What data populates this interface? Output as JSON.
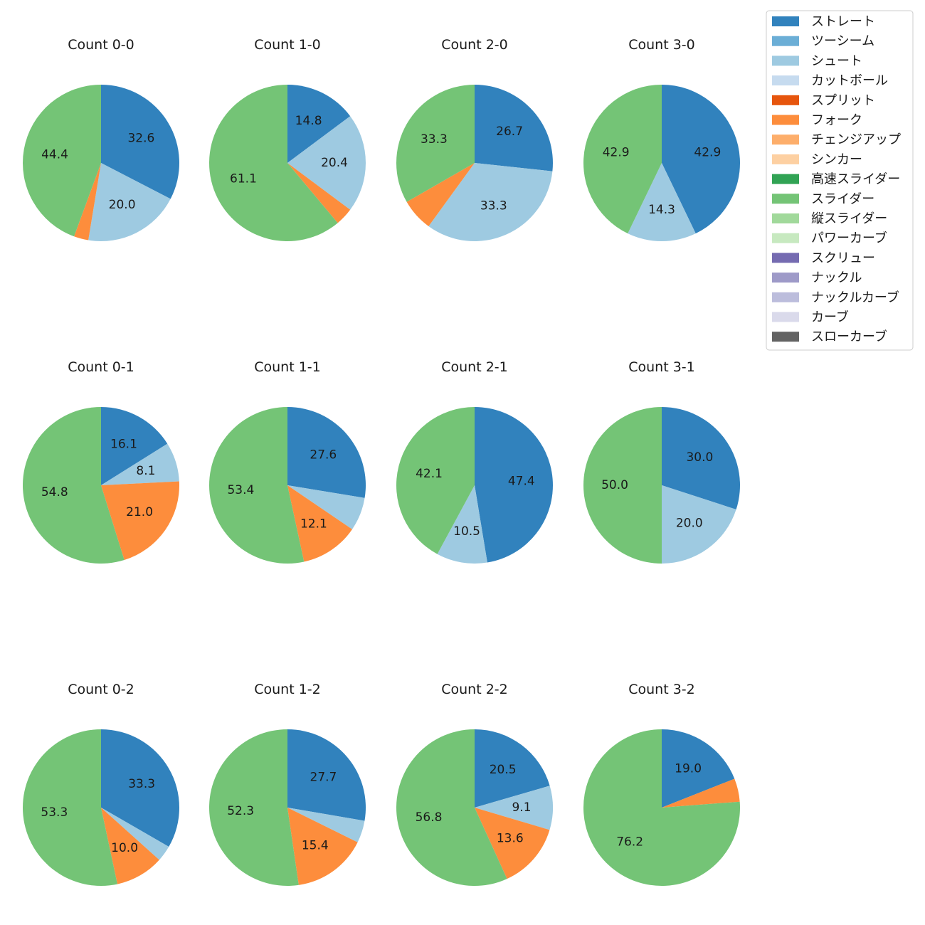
{
  "chart_data": {
    "type": "pie",
    "legend": {
      "placement": "top-right",
      "entries": [
        {
          "name": "ストレート",
          "color": "#3182bd"
        },
        {
          "name": "ツーシーム",
          "color": "#6baed6"
        },
        {
          "name": "シュート",
          "color": "#9ecae1"
        },
        {
          "name": "カットボール",
          "color": "#c6dbef"
        },
        {
          "name": "スプリット",
          "color": "#e6550d"
        },
        {
          "name": "フォーク",
          "color": "#fd8d3c"
        },
        {
          "name": "チェンジアップ",
          "color": "#fdae6b"
        },
        {
          "name": "シンカー",
          "color": "#fdd0a2"
        },
        {
          "name": "高速スライダー",
          "color": "#31a354"
        },
        {
          "name": "スライダー",
          "color": "#74c476"
        },
        {
          "name": "縦スライダー",
          "color": "#a1d99b"
        },
        {
          "name": "パワーカーブ",
          "color": "#c7e9c0"
        },
        {
          "name": "スクリュー",
          "color": "#756bb1"
        },
        {
          "name": "ナックル",
          "color": "#9e9ac8"
        },
        {
          "name": "ナックルカーブ",
          "color": "#bcbddc"
        },
        {
          "name": "カーブ",
          "color": "#dadaeb"
        },
        {
          "name": "スローカーブ",
          "color": "#636363"
        }
      ]
    },
    "pies": [
      {
        "title": "Count 0-0",
        "slices": [
          {
            "pitch": "ストレート",
            "value": 32.6,
            "label": "32.6"
          },
          {
            "pitch": "シュート",
            "value": 20.0,
            "label": "20.0"
          },
          {
            "pitch": "フォーク",
            "value": 3.0,
            "label": ""
          },
          {
            "pitch": "スライダー",
            "value": 44.4,
            "label": "44.4"
          }
        ]
      },
      {
        "title": "Count 1-0",
        "slices": [
          {
            "pitch": "ストレート",
            "value": 14.8,
            "label": "14.8"
          },
          {
            "pitch": "シュート",
            "value": 20.4,
            "label": "20.4"
          },
          {
            "pitch": "フォーク",
            "value": 3.7,
            "label": ""
          },
          {
            "pitch": "スライダー",
            "value": 61.1,
            "label": "61.1"
          }
        ]
      },
      {
        "title": "Count 2-0",
        "slices": [
          {
            "pitch": "ストレート",
            "value": 26.7,
            "label": "26.7"
          },
          {
            "pitch": "シュート",
            "value": 33.3,
            "label": "33.3"
          },
          {
            "pitch": "フォーク",
            "value": 6.7,
            "label": ""
          },
          {
            "pitch": "スライダー",
            "value": 33.3,
            "label": "33.3"
          }
        ]
      },
      {
        "title": "Count 3-0",
        "slices": [
          {
            "pitch": "ストレート",
            "value": 42.9,
            "label": "42.9"
          },
          {
            "pitch": "シュート",
            "value": 14.3,
            "label": "14.3"
          },
          {
            "pitch": "スライダー",
            "value": 42.9,
            "label": "42.9"
          }
        ]
      },
      {
        "title": "Count 0-1",
        "slices": [
          {
            "pitch": "ストレート",
            "value": 16.1,
            "label": "16.1"
          },
          {
            "pitch": "シュート",
            "value": 8.1,
            "label": "8.1"
          },
          {
            "pitch": "フォーク",
            "value": 21.0,
            "label": "21.0"
          },
          {
            "pitch": "スライダー",
            "value": 54.8,
            "label": "54.8"
          }
        ]
      },
      {
        "title": "Count 1-1",
        "slices": [
          {
            "pitch": "ストレート",
            "value": 27.6,
            "label": "27.6"
          },
          {
            "pitch": "シュート",
            "value": 6.9,
            "label": ""
          },
          {
            "pitch": "フォーク",
            "value": 12.1,
            "label": "12.1"
          },
          {
            "pitch": "スライダー",
            "value": 53.4,
            "label": "53.4"
          }
        ]
      },
      {
        "title": "Count 2-1",
        "slices": [
          {
            "pitch": "ストレート",
            "value": 47.4,
            "label": "47.4"
          },
          {
            "pitch": "シュート",
            "value": 10.5,
            "label": "10.5"
          },
          {
            "pitch": "スライダー",
            "value": 42.1,
            "label": "42.1"
          }
        ]
      },
      {
        "title": "Count 3-1",
        "slices": [
          {
            "pitch": "ストレート",
            "value": 30.0,
            "label": "30.0"
          },
          {
            "pitch": "シュート",
            "value": 20.0,
            "label": "20.0"
          },
          {
            "pitch": "スライダー",
            "value": 50.0,
            "label": "50.0"
          }
        ]
      },
      {
        "title": "Count 0-2",
        "slices": [
          {
            "pitch": "ストレート",
            "value": 33.3,
            "label": "33.3"
          },
          {
            "pitch": "シュート",
            "value": 3.3,
            "label": ""
          },
          {
            "pitch": "フォーク",
            "value": 10.0,
            "label": "10.0"
          },
          {
            "pitch": "スライダー",
            "value": 53.3,
            "label": "53.3"
          }
        ]
      },
      {
        "title": "Count 1-2",
        "slices": [
          {
            "pitch": "ストレート",
            "value": 27.7,
            "label": "27.7"
          },
          {
            "pitch": "シュート",
            "value": 4.6,
            "label": ""
          },
          {
            "pitch": "フォーク",
            "value": 15.4,
            "label": "15.4"
          },
          {
            "pitch": "スライダー",
            "value": 52.3,
            "label": "52.3"
          }
        ]
      },
      {
        "title": "Count 2-2",
        "slices": [
          {
            "pitch": "ストレート",
            "value": 20.5,
            "label": "20.5"
          },
          {
            "pitch": "シュート",
            "value": 9.1,
            "label": "9.1"
          },
          {
            "pitch": "フォーク",
            "value": 13.6,
            "label": "13.6"
          },
          {
            "pitch": "スライダー",
            "value": 56.8,
            "label": "56.8"
          }
        ]
      },
      {
        "title": "Count 3-2",
        "slices": [
          {
            "pitch": "ストレート",
            "value": 19.0,
            "label": "19.0"
          },
          {
            "pitch": "フォーク",
            "value": 4.8,
            "label": ""
          },
          {
            "pitch": "スライダー",
            "value": 76.2,
            "label": "76.2"
          }
        ]
      }
    ]
  }
}
